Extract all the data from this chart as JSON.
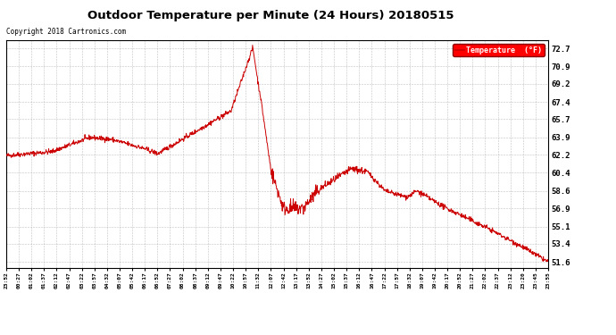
{
  "title": "Outdoor Temperature per Minute (24 Hours) 20180515",
  "copyright_text": "Copyright 2018 Cartronics.com",
  "legend_label": "Temperature  (°F)",
  "line_color": "#cc0000",
  "background_color": "#ffffff",
  "plot_bg_color": "#ffffff",
  "grid_color": "#999999",
  "yticks": [
    51.6,
    53.4,
    55.1,
    56.9,
    58.6,
    60.4,
    62.2,
    63.9,
    65.7,
    67.4,
    69.2,
    70.9,
    72.7
  ],
  "ylim": [
    51.0,
    73.5
  ],
  "xtick_labels": [
    "23:52",
    "00:27",
    "01:02",
    "01:37",
    "02:12",
    "02:47",
    "03:22",
    "03:57",
    "04:32",
    "05:07",
    "05:42",
    "06:17",
    "06:52",
    "07:27",
    "08:02",
    "08:37",
    "09:12",
    "09:47",
    "10:22",
    "10:57",
    "11:32",
    "12:07",
    "12:42",
    "13:17",
    "13:52",
    "14:27",
    "15:02",
    "15:37",
    "16:12",
    "16:47",
    "17:22",
    "17:57",
    "18:32",
    "19:07",
    "19:42",
    "20:17",
    "20:52",
    "21:27",
    "22:02",
    "22:37",
    "23:12",
    "23:20",
    "23:45",
    "23:55"
  ]
}
